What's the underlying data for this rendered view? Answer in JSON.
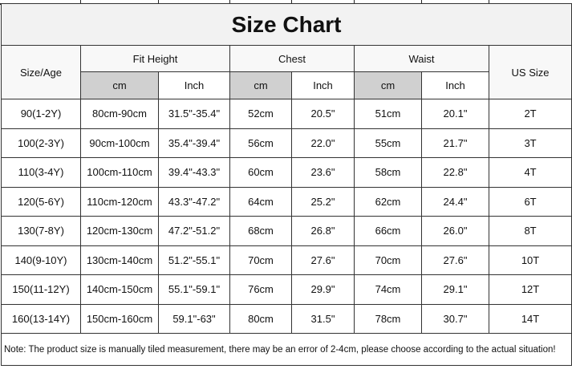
{
  "title": "Size Chart",
  "headers": {
    "size_age": "Size/Age",
    "fit_height": "Fit Height",
    "chest": "Chest",
    "waist": "Waist",
    "us_size": "US Size",
    "cm": "cm",
    "inch": "Inch"
  },
  "rows": [
    [
      "90(1-2Y)",
      "80cm-90cm",
      "31.5\"-35.4\"",
      "52cm",
      "20.5\"",
      "51cm",
      "20.1\"",
      "2T"
    ],
    [
      "100(2-3Y)",
      "90cm-100cm",
      "35.4\"-39.4\"",
      "56cm",
      "22.0\"",
      "55cm",
      "21.7\"",
      "3T"
    ],
    [
      "110(3-4Y)",
      "100cm-110cm",
      "39.4\"-43.3\"",
      "60cm",
      "23.6\"",
      "58cm",
      "22.8\"",
      "4T"
    ],
    [
      "120(5-6Y)",
      "110cm-120cm",
      "43.3\"-47.2\"",
      "64cm",
      "25.2\"",
      "62cm",
      "24.4\"",
      "6T"
    ],
    [
      "130(7-8Y)",
      "120cm-130cm",
      "47.2\"-51.2\"",
      "68cm",
      "26.8\"",
      "66cm",
      "26.0\"",
      "8T"
    ],
    [
      "140(9-10Y)",
      "130cm-140cm",
      "51.2\"-55.1\"",
      "70cm",
      "27.6\"",
      "70cm",
      "27.6\"",
      "10T"
    ],
    [
      "150(11-12Y)",
      "140cm-150cm",
      "55.1\"-59.1\"",
      "76cm",
      "29.9\"",
      "74cm",
      "29.1\"",
      "12T"
    ],
    [
      "160(13-14Y)",
      "150cm-160cm",
      "59.1\"-63\"",
      "80cm",
      "31.5\"",
      "78cm",
      "30.7\"",
      "14T"
    ]
  ],
  "note": "Note: The product size is manually tiled measurement, there may be an error of 2-4cm, please choose according to the actual situation!",
  "colors": {
    "title_bg": "#f2f2f2",
    "unit_cm_bg": "#d0d0d0",
    "border": "#333333"
  }
}
